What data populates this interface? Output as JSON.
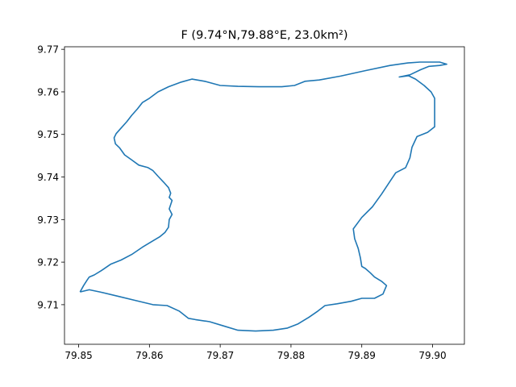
{
  "chart_data": {
    "type": "line",
    "title": "F (9.74°N,79.88°E,  23.0km²)",
    "xlabel": "",
    "ylabel": "",
    "xlim": [
      79.848,
      79.9045
    ],
    "ylim": [
      9.7007,
      9.7706
    ],
    "x_ticks": [
      79.85,
      79.86,
      79.87,
      79.88,
      79.89,
      79.9
    ],
    "x_tick_labels": [
      "79.85",
      "79.86",
      "79.87",
      "79.88",
      "79.89",
      "79.90"
    ],
    "y_ticks": [
      9.71,
      9.72,
      9.73,
      9.74,
      9.75,
      9.76,
      9.77
    ],
    "y_tick_labels": [
      "9.71",
      "9.72",
      "9.73",
      "9.74",
      "9.75",
      "9.76",
      "9.77"
    ],
    "grid": false,
    "line_color": "#1f77b4",
    "series": [
      {
        "x": [
          79.8502,
          79.8507,
          79.8512,
          79.8515,
          79.8522,
          79.8532,
          79.8545,
          79.856,
          79.8575,
          79.859,
          79.8605,
          79.8615,
          79.8622,
          79.8627,
          79.8628,
          79.8632,
          79.8628,
          79.8632,
          79.8628,
          79.863,
          79.8627,
          79.862,
          79.8612,
          79.8605,
          79.8598,
          79.8585,
          79.8575,
          79.8565,
          79.8558,
          79.8552,
          79.855,
          79.8553,
          79.856,
          79.8568,
          79.8575,
          79.8583,
          79.859,
          79.86,
          79.8612,
          79.8627,
          79.8645,
          79.866,
          79.8678,
          79.87,
          79.8725,
          79.8755,
          79.8787,
          79.8805,
          79.882,
          79.884,
          79.887,
          79.8905,
          79.894,
          79.8965,
          79.8982,
          79.8998,
          79.901,
          79.902,
          79.901,
          79.8995,
          79.8983,
          79.8968,
          79.8953,
          79.8966,
          79.8976,
          79.8988,
          79.8998,
          79.9003,
          79.9003,
          79.8993,
          79.8978,
          79.8971,
          79.8968,
          79.8962,
          79.8948,
          79.894,
          79.8928,
          79.8915,
          79.89,
          79.8888,
          79.889,
          79.8895,
          79.8898,
          79.89,
          79.8905,
          79.8912,
          79.8918,
          79.8928,
          79.8935,
          79.893,
          79.8918,
          79.89,
          79.8885,
          79.8865,
          79.8848,
          79.8838,
          79.8825,
          79.881,
          79.8795,
          79.8775,
          79.875,
          79.8725,
          79.8705,
          79.8685,
          79.8665,
          79.8655,
          79.8642,
          79.8625,
          79.8605,
          79.858,
          79.8555,
          79.853,
          79.8515,
          79.8502
        ],
        "y": [
          9.713,
          9.7145,
          9.7158,
          9.7165,
          9.717,
          9.718,
          9.7195,
          9.7205,
          9.7218,
          9.7235,
          9.725,
          9.726,
          9.727,
          9.7282,
          9.73,
          9.7312,
          9.7325,
          9.7345,
          9.7352,
          9.7362,
          9.7375,
          9.7388,
          9.7402,
          9.7415,
          9.7422,
          9.7428,
          9.744,
          9.7452,
          9.7468,
          9.7478,
          9.7492,
          9.7502,
          9.7515,
          9.753,
          9.7545,
          9.756,
          9.7575,
          9.7585,
          9.76,
          9.7612,
          9.7623,
          9.763,
          9.7625,
          9.7615,
          9.7613,
          9.7612,
          9.7612,
          9.7615,
          9.7625,
          9.7628,
          9.7637,
          9.765,
          9.7662,
          9.7668,
          9.767,
          9.767,
          9.767,
          9.7665,
          9.7662,
          9.766,
          9.7652,
          9.764,
          9.7635,
          9.7638,
          9.763,
          9.7615,
          9.76,
          9.7585,
          9.7518,
          9.7505,
          9.7495,
          9.747,
          9.7445,
          9.7422,
          9.741,
          9.739,
          9.736,
          9.733,
          9.7305,
          9.7278,
          9.7255,
          9.7232,
          9.721,
          9.719,
          9.7185,
          9.7175,
          9.7165,
          9.7155,
          9.7145,
          9.7125,
          9.7115,
          9.7115,
          9.7108,
          9.7102,
          9.7098,
          9.7085,
          9.707,
          9.7055,
          9.7045,
          9.704,
          9.7038,
          9.704,
          9.705,
          9.706,
          9.7065,
          9.7068,
          9.7085,
          9.7098,
          9.71,
          9.711,
          9.712,
          9.713,
          9.7135,
          9.713
        ]
      }
    ]
  }
}
